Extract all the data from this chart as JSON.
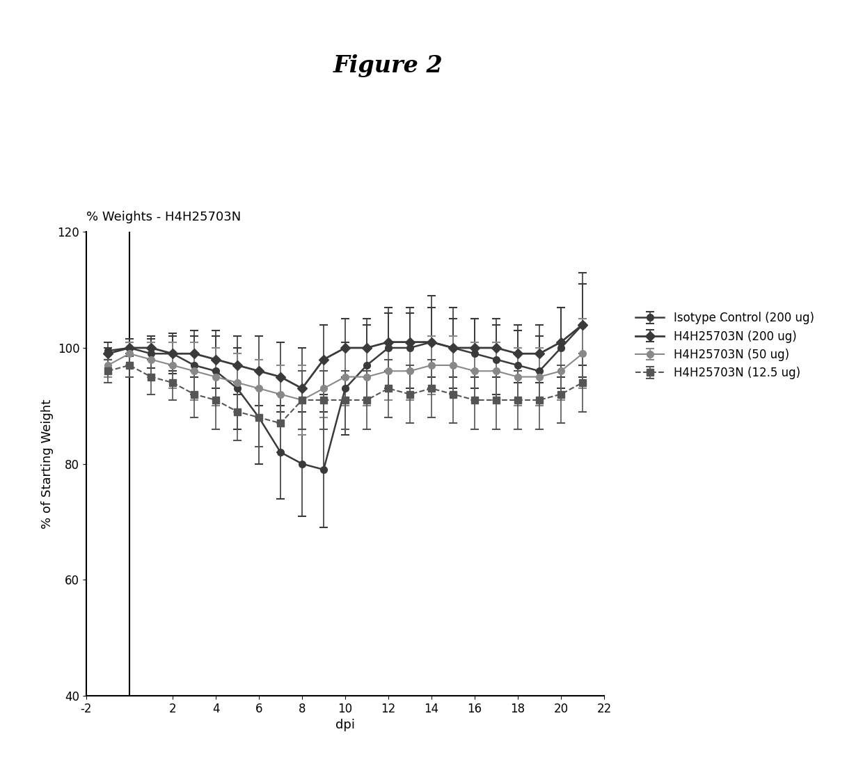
{
  "title_main": "Figure 2",
  "title_chart": "% Weights - H4H25703N",
  "xlabel": "dpi",
  "ylabel": "% of Starting Weight",
  "xlim": [
    -2,
    22
  ],
  "ylim": [
    40,
    120
  ],
  "yticks": [
    40,
    60,
    80,
    100,
    120
  ],
  "xticks": [
    -2,
    2,
    4,
    6,
    8,
    10,
    12,
    14,
    16,
    18,
    20,
    22
  ],
  "xtick_labels": [
    "-2",
    "2",
    "4",
    "6",
    "8",
    "10",
    "12",
    "14",
    "16",
    "18",
    "20",
    "22"
  ],
  "series": [
    {
      "label": "Isotype Control (200 ug)",
      "marker": "o",
      "linestyle": "-",
      "color": "#3a3a3a",
      "markerfacecolor": "#3a3a3a",
      "markersize": 7,
      "linewidth": 1.8,
      "x": [
        -1,
        0,
        1,
        2,
        3,
        4,
        5,
        6,
        7,
        8,
        9,
        10,
        11,
        12,
        13,
        14,
        15,
        16,
        17,
        18,
        19,
        20,
        21
      ],
      "y": [
        99.5,
        100,
        99,
        99,
        97,
        96,
        93,
        88,
        82,
        80,
        79,
        93,
        97,
        100,
        100,
        101,
        100,
        99,
        98,
        97,
        96,
        100,
        104
      ],
      "yerr": [
        1.5,
        1.5,
        2.5,
        3.5,
        5,
        6,
        7,
        8,
        8,
        9,
        10,
        8,
        7,
        7,
        7,
        8,
        7,
        6,
        6,
        6,
        6,
        7,
        9
      ]
    },
    {
      "label": "H4H25703N (200 ug)",
      "marker": "D",
      "linestyle": "-",
      "color": "#3a3a3a",
      "markerfacecolor": "#3a3a3a",
      "markersize": 7,
      "linewidth": 2.0,
      "x": [
        -1,
        0,
        1,
        2,
        3,
        4,
        5,
        6,
        7,
        8,
        9,
        10,
        11,
        12,
        13,
        14,
        15,
        16,
        17,
        18,
        19,
        20,
        21
      ],
      "y": [
        99,
        100,
        100,
        99,
        99,
        98,
        97,
        96,
        95,
        93,
        98,
        100,
        100,
        101,
        101,
        101,
        100,
        100,
        100,
        99,
        99,
        101,
        104
      ],
      "yerr": [
        1,
        1,
        2,
        3,
        4,
        5,
        5,
        6,
        6,
        7,
        6,
        5,
        5,
        5,
        5,
        6,
        5,
        5,
        5,
        5,
        5,
        6,
        7
      ]
    },
    {
      "label": "H4H25703N (50 ug)",
      "marker": "o",
      "linestyle": "-",
      "color": "#888888",
      "markerfacecolor": "#888888",
      "markersize": 7,
      "linewidth": 1.5,
      "x": [
        -1,
        0,
        1,
        2,
        3,
        4,
        5,
        6,
        7,
        8,
        9,
        10,
        11,
        12,
        13,
        14,
        15,
        16,
        17,
        18,
        19,
        20,
        21
      ],
      "y": [
        97,
        99,
        98,
        97,
        96,
        95,
        94,
        93,
        92,
        91,
        93,
        95,
        95,
        96,
        96,
        97,
        97,
        96,
        96,
        95,
        95,
        96,
        99
      ],
      "yerr": [
        2,
        2,
        3,
        4,
        5,
        5,
        5,
        5,
        5,
        6,
        5,
        5,
        5,
        5,
        5,
        5,
        5,
        5,
        5,
        5,
        5,
        5,
        6
      ]
    },
    {
      "label": "H4H25703N (12.5 ug)",
      "marker": "s",
      "linestyle": "--",
      "color": "#555555",
      "markerfacecolor": "#555555",
      "markersize": 7,
      "linewidth": 1.5,
      "x": [
        -1,
        0,
        1,
        2,
        3,
        4,
        5,
        6,
        7,
        8,
        9,
        10,
        11,
        12,
        13,
        14,
        15,
        16,
        17,
        18,
        19,
        20,
        21
      ],
      "y": [
        96,
        97,
        95,
        94,
        92,
        91,
        89,
        88,
        87,
        91,
        91,
        91,
        91,
        93,
        92,
        93,
        92,
        91,
        91,
        91,
        91,
        92,
        94
      ],
      "yerr": [
        2,
        2,
        3,
        3,
        4,
        5,
        5,
        5,
        5,
        5,
        5,
        5,
        5,
        5,
        5,
        5,
        5,
        5,
        5,
        5,
        5,
        5,
        5
      ]
    }
  ],
  "background_color": "#ffffff",
  "figure_title_fontsize": 24,
  "chart_title_fontsize": 13,
  "axis_label_fontsize": 13,
  "tick_fontsize": 12,
  "legend_fontsize": 12
}
